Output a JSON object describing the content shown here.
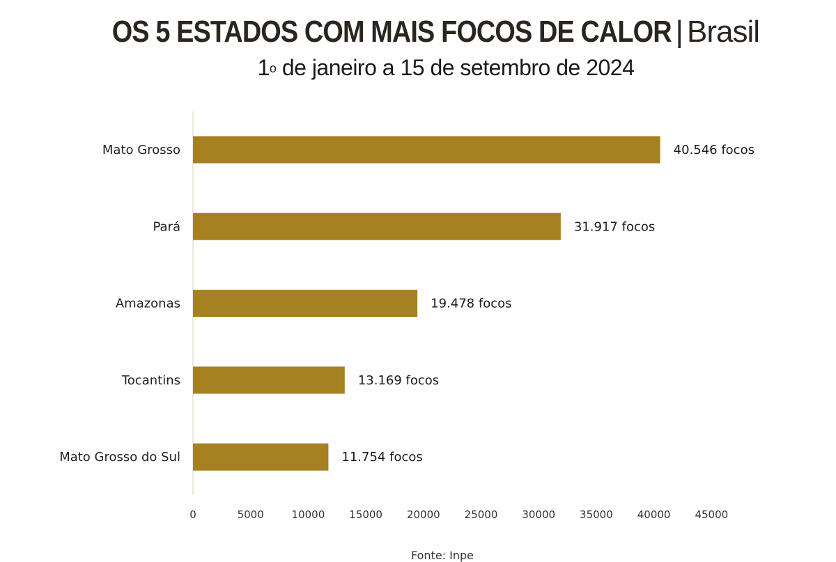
{
  "header": {
    "title_main": "OS 5 ESTADOS COM MAIS FOCOS DE CALOR",
    "title_sep": "|",
    "title_region": "Brasil",
    "subtitle_prefix": "1",
    "subtitle_ordinal": "o",
    "subtitle_rest": "de janeiro a 15 de setembro de 2024"
  },
  "chart_data": {
    "type": "bar",
    "orientation": "horizontal",
    "categories": [
      "Mato Grosso",
      "Pará",
      "Amazonas",
      "Tocantins",
      "Mato Grosso do Sul"
    ],
    "values": [
      40546,
      31917,
      19478,
      13169,
      11754
    ],
    "value_labels": [
      "40.546 focos",
      "31.917 focos",
      "19.478 focos",
      "13.169 focos",
      "11.754 focos"
    ],
    "xlim": [
      0,
      45000
    ],
    "xticks": [
      0,
      5000,
      10000,
      15000,
      20000,
      25000,
      30000,
      35000,
      40000,
      45000
    ],
    "bar_color": "#A68121",
    "grid": false,
    "legend": "none",
    "title": "OS 5 ESTADOS COM MAIS FOCOS DE CALOR | Brasil",
    "xlabel": "",
    "ylabel": ""
  },
  "footer": {
    "source_label": "Fonte: Inpe"
  }
}
